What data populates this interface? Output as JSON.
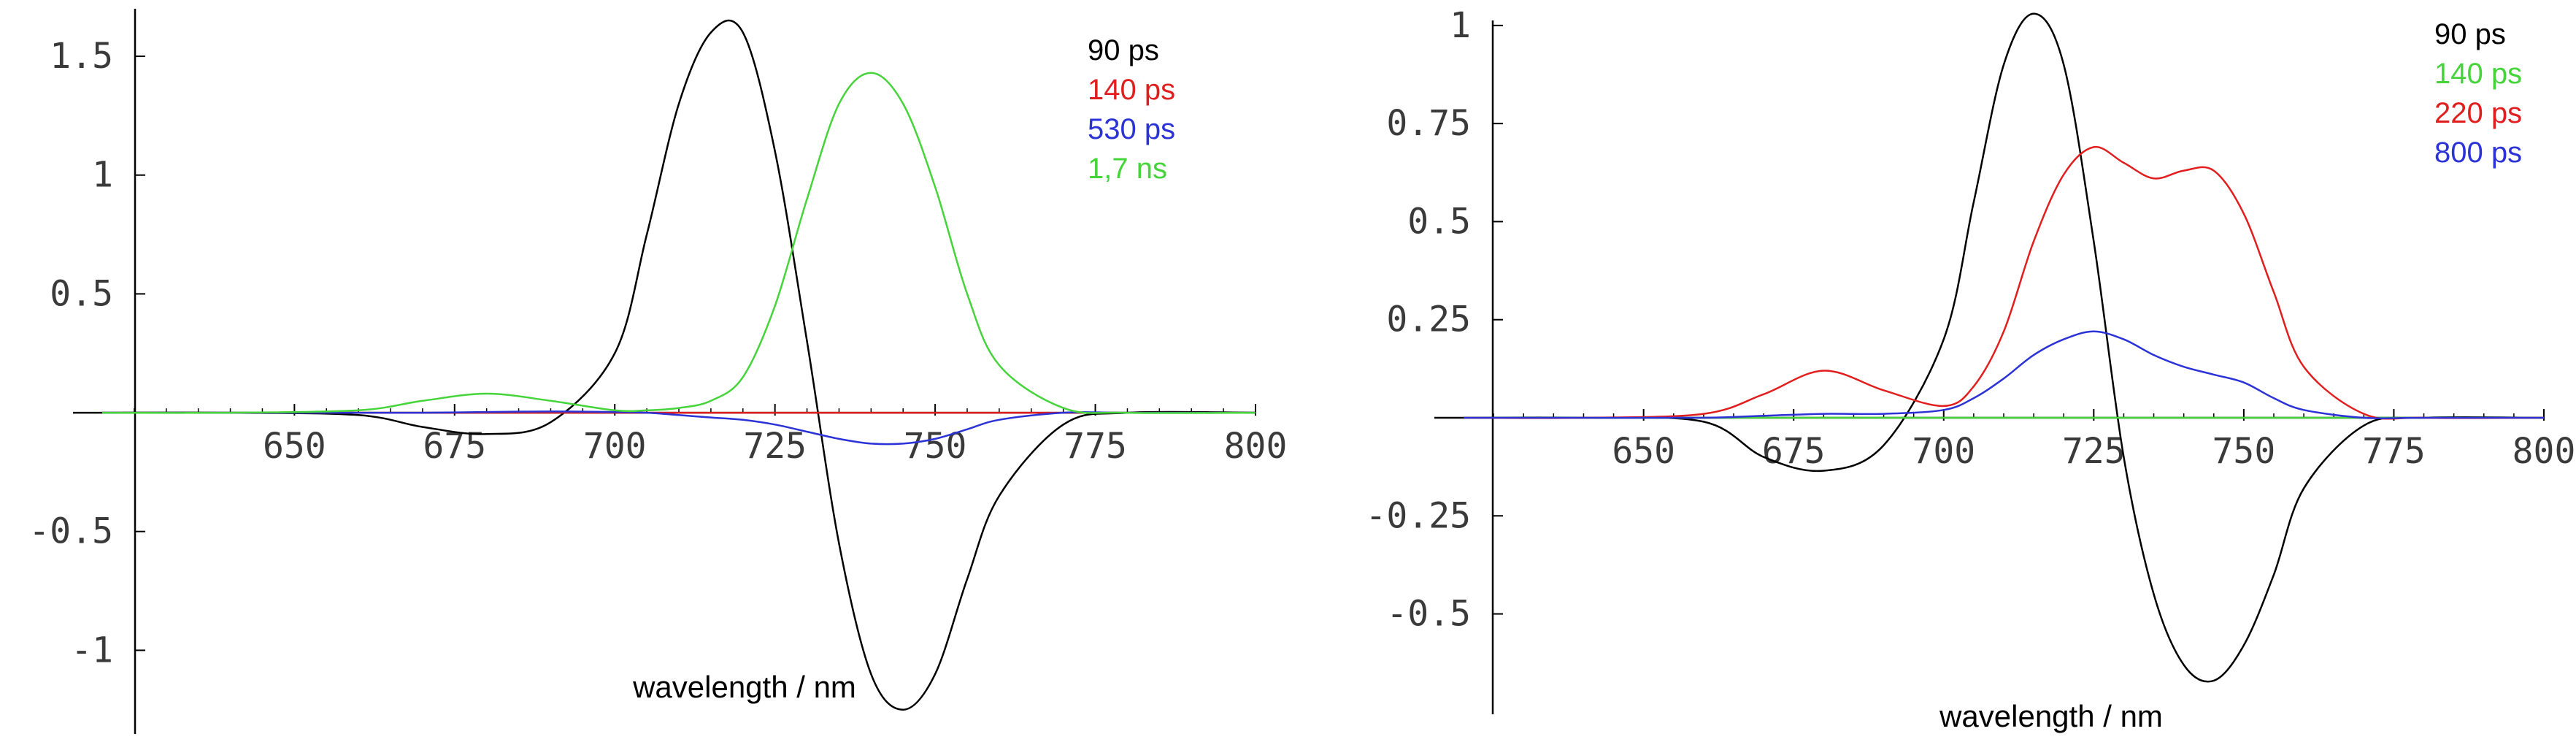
{
  "chart_data": [
    {
      "type": "line",
      "title": "",
      "xlabel": "wavelength / nm",
      "ylabel": "",
      "xlim": [
        620,
        800
      ],
      "ylim": [
        -1.3,
        1.7
      ],
      "x_ticks": [
        650,
        675,
        700,
        725,
        750,
        775,
        800
      ],
      "x_tick_labels": [
        "650",
        "675",
        "700",
        "725",
        "750",
        "775",
        "800"
      ],
      "y_ticks": [
        -1,
        -0.5,
        0.5,
        1,
        1.5
      ],
      "y_tick_labels": [
        "-1",
        "-0.5",
        "0.5",
        "1",
        "1.5"
      ],
      "grid": false,
      "legend_position": "top-right",
      "x": [
        620,
        640,
        660,
        670,
        680,
        690,
        700,
        705,
        710,
        715,
        720,
        725,
        730,
        735,
        740,
        745,
        750,
        755,
        760,
        770,
        780,
        800
      ],
      "series": [
        {
          "name": "90 ps",
          "color": "#000000",
          "values": [
            0,
            0,
            -0.01,
            -0.06,
            -0.09,
            -0.04,
            0.25,
            0.75,
            1.3,
            1.6,
            1.6,
            1.1,
            0.3,
            -0.55,
            -1.1,
            -1.25,
            -1.1,
            -0.7,
            -0.35,
            -0.05,
            0,
            0
          ]
        },
        {
          "name": "140 ps",
          "color": "#e11e1e",
          "values": [
            0,
            0,
            0,
            0,
            0,
            0,
            0,
            0,
            0,
            0,
            0,
            0,
            0,
            0,
            0,
            0,
            0,
            0,
            0,
            0,
            0,
            0
          ]
        },
        {
          "name": "530 ps",
          "color": "#2b32d6",
          "values": [
            0,
            0,
            0,
            0,
            0.003,
            0.005,
            0.003,
            0.0,
            -0.01,
            -0.02,
            -0.03,
            -0.05,
            -0.08,
            -0.11,
            -0.13,
            -0.13,
            -0.11,
            -0.07,
            -0.03,
            0,
            0,
            0
          ]
        },
        {
          "name": "1,7 ns",
          "color": "#45d43a",
          "values": [
            0,
            0,
            0.01,
            0.05,
            0.08,
            0.05,
            0.01,
            0.01,
            0.02,
            0.05,
            0.15,
            0.45,
            0.9,
            1.3,
            1.43,
            1.3,
            0.95,
            0.5,
            0.2,
            0.02,
            0,
            0
          ]
        }
      ]
    },
    {
      "type": "line",
      "title": "",
      "xlabel": "wavelength / nm",
      "ylabel": "",
      "xlim": [
        620,
        800
      ],
      "ylim": [
        -0.7,
        1.05
      ],
      "x_ticks": [
        650,
        675,
        700,
        725,
        750,
        775,
        800
      ],
      "x_tick_labels": [
        "650",
        "675",
        "700",
        "725",
        "750",
        "775",
        "800"
      ],
      "y_ticks": [
        -0.5,
        -0.25,
        0.25,
        0.5,
        0.75,
        1
      ],
      "y_tick_labels": [
        "-0.5",
        "-0.25",
        "0.25",
        "0.5",
        "0.75",
        "1"
      ],
      "grid": false,
      "legend_position": "top-right",
      "x": [
        620,
        640,
        660,
        670,
        680,
        690,
        700,
        705,
        710,
        715,
        720,
        725,
        730,
        735,
        740,
        745,
        750,
        755,
        760,
        770,
        780,
        800
      ],
      "series": [
        {
          "name": "90 ps",
          "color": "#000000",
          "values": [
            0,
            0,
            -0.01,
            -0.1,
            -0.135,
            -0.07,
            0.2,
            0.55,
            0.9,
            1.03,
            0.9,
            0.45,
            -0.1,
            -0.45,
            -0.63,
            -0.67,
            -0.58,
            -0.4,
            -0.18,
            -0.02,
            0,
            0
          ]
        },
        {
          "name": "140 ps",
          "color": "#45d43a",
          "values": [
            0,
            0,
            0,
            0,
            0,
            0,
            0,
            0,
            0,
            0,
            0,
            0,
            0,
            0,
            0,
            0,
            0,
            0,
            0,
            0,
            0,
            0
          ]
        },
        {
          "name": "220 ps",
          "color": "#e11e1e",
          "values": [
            0,
            0,
            0.01,
            0.06,
            0.12,
            0.07,
            0.03,
            0.08,
            0.22,
            0.45,
            0.62,
            0.69,
            0.65,
            0.61,
            0.63,
            0.63,
            0.52,
            0.32,
            0.13,
            0.01,
            0,
            0
          ]
        },
        {
          "name": "800 ps",
          "color": "#2b32d6",
          "values": [
            0,
            0,
            0,
            0.005,
            0.01,
            0.01,
            0.02,
            0.05,
            0.1,
            0.16,
            0.2,
            0.22,
            0.2,
            0.16,
            0.13,
            0.11,
            0.09,
            0.05,
            0.02,
            0.0,
            0,
            0
          ]
        }
      ]
    }
  ]
}
